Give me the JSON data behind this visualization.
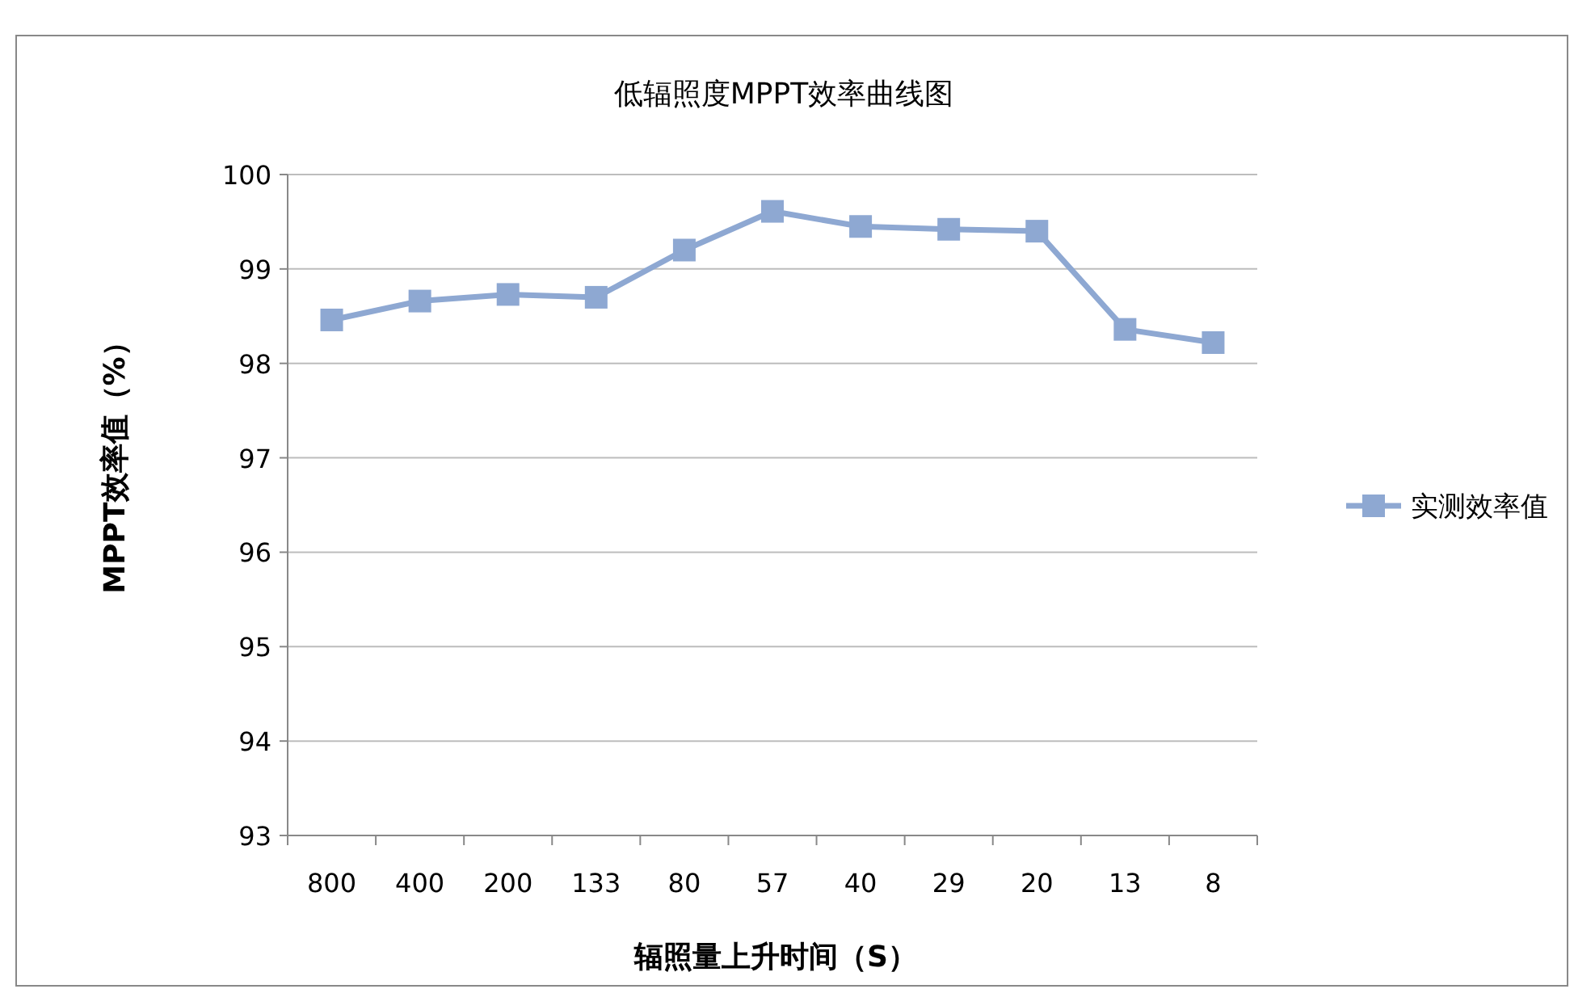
{
  "chart_data": {
    "type": "line",
    "title": "低辐照度MPPT效率曲线图",
    "xlabel": "辐照量上升时间（S）",
    "ylabel": "MPPT效率值（%）",
    "categories": [
      "800",
      "400",
      "200",
      "133",
      "80",
      "57",
      "40",
      "29",
      "20",
      "13",
      "8"
    ],
    "series": [
      {
        "name": "实测效率值",
        "color": "#8ea8d2",
        "values": [
          98.46,
          98.66,
          98.73,
          98.7,
          99.2,
          99.61,
          99.45,
          99.42,
          99.4,
          98.36,
          98.22
        ]
      }
    ],
    "ylim": [
      93,
      100
    ],
    "yticks": [
      93,
      94,
      95,
      96,
      97,
      98,
      99,
      100
    ],
    "grid": "y",
    "legend": "right",
    "marker": "square"
  }
}
